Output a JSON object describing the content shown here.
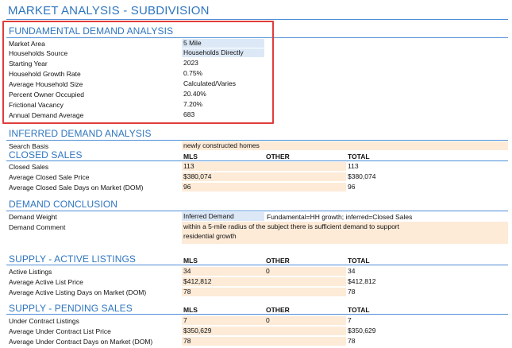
{
  "page_title": "MARKET ANALYSIS - SUBDIVISION",
  "fundamental": {
    "title": "FUNDAMENTAL DEMAND ANALYSIS",
    "rows": [
      {
        "label": "Market Area",
        "value": "5 Mile"
      },
      {
        "label": "Households Source",
        "value": "Households Directly"
      },
      {
        "label": "Starting Year",
        "value": "2023"
      },
      {
        "label": "Household Growth Rate",
        "value": "0.75%"
      },
      {
        "label": "Average Household Size",
        "value": "Calculated/Varies"
      },
      {
        "label": "Percent Owner Occupied",
        "value": "20.40%"
      },
      {
        "label": "Frictional Vacancy",
        "value": "7.20%"
      },
      {
        "label": "Annual Demand Average",
        "value": "683"
      }
    ]
  },
  "inferred": {
    "title": "INFERRED DEMAND ANALYSIS",
    "search_basis_label": "Search Basis",
    "search_basis_value": "newly constructed homes"
  },
  "closed_sales": {
    "title": "CLOSED SALES",
    "col_mls": "MLS",
    "col_other": "OTHER",
    "col_total": "TOTAL",
    "rows": [
      {
        "label": "Closed Sales",
        "mls": "113",
        "other": "",
        "total": "113"
      },
      {
        "label": "Average Closed Sale Price",
        "mls": "$380,074",
        "other": "",
        "total": "$380,074"
      },
      {
        "label": "Average Closed Sale Days on Market (DOM)",
        "mls": "96",
        "other": "",
        "total": "96"
      }
    ]
  },
  "demand_conclusion": {
    "title": "DEMAND CONCLUSION",
    "weight_label": "Demand Weight",
    "weight_value": "Inferred Demand",
    "weight_note": "Fundamental=HH growth; inferred=Closed Sales",
    "comment_label": "Demand Comment",
    "comment_line1": "within a 5-mile radius of the subject there is sufficient demand to support",
    "comment_line2": "residential growth"
  },
  "active_listings": {
    "title": "SUPPLY - ACTIVE LISTINGS",
    "col_mls": "MLS",
    "col_other": "OTHER",
    "col_total": "TOTAL",
    "rows": [
      {
        "label": "Active Listings",
        "mls": "34",
        "other": "0",
        "total": "34"
      },
      {
        "label": "Average Active List Price",
        "mls": "$412,812",
        "other": "",
        "total": "$412,812"
      },
      {
        "label": "Average Active Listing Days on Market (DOM)",
        "mls": "78",
        "other": "",
        "total": "78"
      }
    ]
  },
  "pending_sales": {
    "title": "SUPPLY - PENDING SALES",
    "col_mls": "MLS",
    "col_other": "OTHER",
    "col_total": "TOTAL",
    "rows": [
      {
        "label": "Under Contract Listings",
        "mls": "7",
        "other": "0",
        "total": "7"
      },
      {
        "label": "Average Under Contract List Price",
        "mls": "$350,629",
        "other": "",
        "total": "$350,629"
      },
      {
        "label": "Average Under Contract Days on Market (DOM)",
        "mls": "78",
        "other": "",
        "total": "78"
      }
    ]
  }
}
